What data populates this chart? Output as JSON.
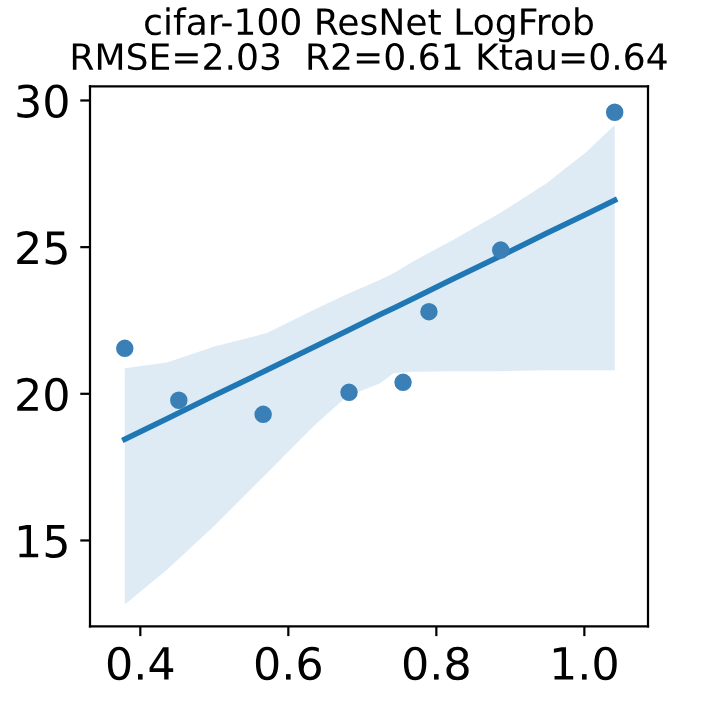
{
  "chart_data": {
    "type": "scatter",
    "title": "cifar-100 ResNet LogFrob\nRMSE=2.03  R2=0.61 Ktau=0.64",
    "xlim": [
      0.332,
      1.086
    ],
    "ylim": [
      12.07,
      30.48
    ],
    "xticks": [
      0.4,
      0.6,
      0.8,
      {
        "value": 1.0,
        "label": "1.0"
      }
    ],
    "yticks": [
      15,
      20,
      25,
      30
    ],
    "grid": false,
    "series": [
      {
        "color": "#3a7fb6",
        "marker": "circle",
        "x": [
          0.379,
          0.452,
          0.566,
          0.682,
          0.755,
          0.79,
          0.887,
          1.041
        ],
        "values": [
          21.55,
          19.78,
          19.3,
          20.05,
          20.39,
          22.8,
          24.9,
          29.6
        ]
      },
      {
        "type": "line",
        "color": "#1f77b4",
        "marker": "none",
        "line_style": "solid",
        "x": [
          0.379,
          0.436,
          0.499,
          0.571,
          0.634,
          0.679,
          0.724,
          0.742,
          0.769,
          0.823,
          0.886,
          0.949,
          1.003,
          1.041
        ],
        "values": [
          18.45,
          19.15,
          19.93,
          20.81,
          21.59,
          22.14,
          22.7,
          22.92,
          23.25,
          23.92,
          24.69,
          25.47,
          26.13,
          26.6
        ],
        "lower": [
          12.82,
          14.0,
          15.48,
          17.29,
          18.89,
          19.91,
          20.36,
          20.7,
          20.75,
          20.77,
          20.77,
          20.8,
          20.8,
          20.8
        ],
        "upper": [
          20.87,
          21.07,
          21.6,
          22.07,
          22.86,
          23.39,
          23.89,
          24.11,
          24.52,
          25.25,
          26.16,
          27.18,
          28.25,
          29.16
        ]
      }
    ]
  }
}
